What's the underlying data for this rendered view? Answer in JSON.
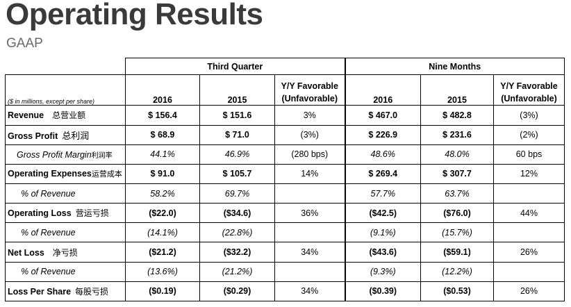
{
  "title": "Operating Results",
  "subtitle": "GAAP",
  "table": {
    "group_headers": [
      "Third Quarter",
      "Nine Months"
    ],
    "units_note": "($ in millions, except per share)",
    "columns": [
      "2016",
      "2015",
      "Y/Y Favorable\n(Unfavorable)",
      "2016",
      "2015",
      "Y/Y Favorable\n(Unfavorable)"
    ],
    "rows": [
      {
        "label": "Revenue",
        "cn": "总营业额",
        "values": [
          "$ 156.4",
          "$ 151.6",
          "3%",
          "$ 467.0",
          "$ 482.8",
          "(3%)"
        ]
      },
      {
        "label": "Gross Profit",
        "cn": "总利润",
        "values": [
          "$ 68.9",
          "$ 71.0",
          "(3%)",
          "$ 226.9",
          "$ 231.6",
          "(2%)"
        ]
      },
      {
        "label": "Gross Profit Margin",
        "cn": "利润率",
        "values": [
          "44.1%",
          "46.9%",
          "(280 bps)",
          "48.6%",
          "48.0%",
          "60 bps"
        ]
      },
      {
        "label": "Operating Expenses",
        "cn": "运营成本",
        "values": [
          "$ 91.0",
          "$ 105.7",
          "14%",
          "$ 269.4",
          "$ 307.7",
          "12%"
        ]
      },
      {
        "label": "% of Revenue",
        "cn": "",
        "values": [
          "58.2%",
          "69.7%",
          "",
          "57.7%",
          "63.7%",
          ""
        ]
      },
      {
        "label": "Operating Loss",
        "cn": "营运亏损",
        "values": [
          "($22.0)",
          "($34.6)",
          "36%",
          "($42.5)",
          "($76.0)",
          "44%"
        ]
      },
      {
        "label": "% of Revenue",
        "cn": "",
        "values": [
          "(14.1%)",
          "(22.8%)",
          "",
          "(9.1%)",
          "(15.7%)",
          ""
        ]
      },
      {
        "label": "Net Loss",
        "cn": "净亏损",
        "values": [
          "($21.2)",
          "($32.2)",
          "34%",
          "($43.6)",
          "($59.1)",
          "26%"
        ]
      },
      {
        "label": "% of Revenue",
        "cn": "",
        "values": [
          "(13.6%)",
          "(21.2%)",
          "",
          "(9.3%)",
          "(12.2%)",
          ""
        ]
      },
      {
        "label": "Loss Per Share",
        "cn": "每股亏损",
        "values": [
          "($0.19)",
          "($0.29)",
          "34%",
          "($0.39)",
          "($0.53)",
          "26%"
        ]
      }
    ]
  }
}
